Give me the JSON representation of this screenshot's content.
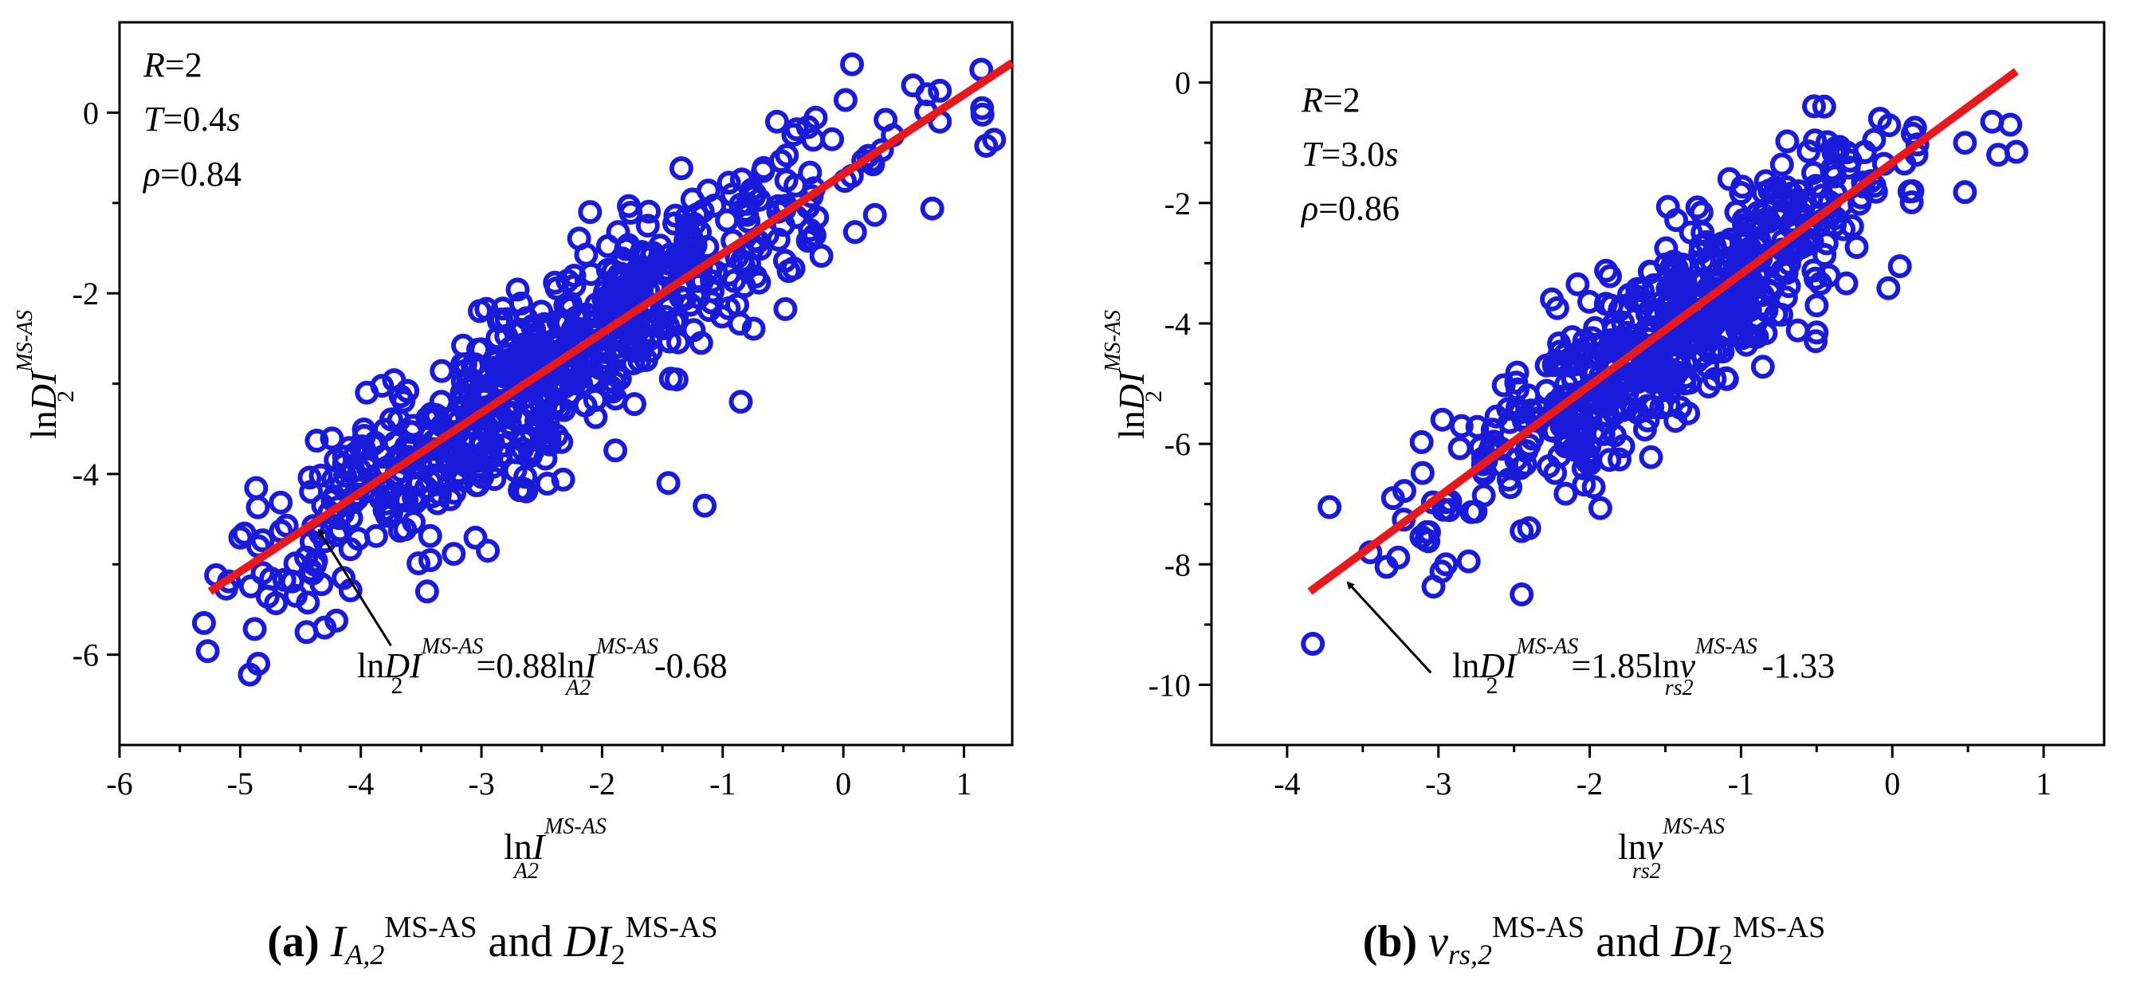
{
  "chart_data": [
    {
      "type": "scatter",
      "panel_label": "(a)",
      "caption": {
        "v1": "I",
        "v1_sub": "A,2",
        "sup": "MS-AS",
        "mid": " and ",
        "v2": "DI",
        "v2_sub": "2",
        "sup2": "MS-AS"
      },
      "xlabel": {
        "pre": "ln",
        "var": "I",
        "sub": "A2",
        "sup": "MS-AS"
      },
      "ylabel": {
        "pre": "ln",
        "var": "DI",
        "sub": "2",
        "sup": "MS-AS"
      },
      "xlim": [
        -6,
        1.4
      ],
      "ylim": [
        -7,
        1.0
      ],
      "xticks": [
        -6,
        -5,
        -4,
        -3,
        -2,
        -1,
        0,
        1
      ],
      "yticks": [
        -6,
        -4,
        -2,
        0
      ],
      "stats": [
        "R=2",
        "T=0.4s",
        "ρ=0.84"
      ],
      "stat_parts": [
        {
          "var": "R",
          "rest": "=2"
        },
        {
          "var": "T",
          "rest": "=0.4",
          "unit": "s"
        },
        {
          "var": "ρ",
          "rest": "=0.84"
        }
      ],
      "equation": {
        "lhs_pre": "ln",
        "lhs_var": "DI",
        "lhs_sub": "2",
        "sup": "MS-AS",
        "mid": "=0.88ln",
        "rhs_var": "I",
        "rhs_sub": "A2",
        "rhs_sup": "MS-AS",
        "tail": "-0.68"
      },
      "fit": {
        "slope": 0.88,
        "intercept": -0.68,
        "x_range": [
          -5.25,
          1.4
        ],
        "color": "#e8191c"
      },
      "marker_color": "#1a1adb",
      "annotation_arrow": {
        "from": [
          -3.75,
          -5.9
        ],
        "to": [
          -4.35,
          -4.62
        ]
      },
      "cloud": {
        "seed": 7,
        "n": 700,
        "x_center": -2.4,
        "x_sd": 1.15,
        "x_min": -5.3,
        "x_max": 1.3,
        "slope": 0.88,
        "intercept": -0.68,
        "resid_sd": 0.48,
        "extra": [
          [
            -5.3,
            -5.65
          ],
          [
            -4.92,
            -6.22
          ],
          [
            -4.85,
            -6.1
          ],
          [
            -4.45,
            -5.75
          ],
          [
            -4.3,
            -5.7
          ],
          [
            -5.2,
            -5.12
          ],
          [
            -4.85,
            -4.8
          ],
          [
            -4.4,
            -5.1
          ],
          [
            -3.95,
            -3.1
          ],
          [
            -1.15,
            -4.35
          ],
          [
            -1.45,
            -4.1
          ],
          [
            -3.45,
            -5.3
          ],
          [
            -0.25,
            -0.3
          ],
          [
            0.35,
            -0.08
          ],
          [
            1.15,
            0.05
          ],
          [
            1.25,
            -0.3
          ],
          [
            0.8,
            -0.1
          ],
          [
            -0.55,
            -0.1
          ],
          [
            -2.1,
            -1.1
          ],
          [
            -0.85,
            -3.2
          ]
        ]
      }
    },
    {
      "type": "scatter",
      "panel_label": "(b)",
      "caption": {
        "v1": "v",
        "v1_sub": "rs,2",
        "sup": "MS-AS",
        "mid": " and ",
        "v2": "DI",
        "v2_sub": "2",
        "sup2": "MS-AS"
      },
      "xlabel": {
        "pre": "ln",
        "var": "v",
        "sub": "rs2",
        "sup": "MS-AS"
      },
      "ylabel": {
        "pre": "ln",
        "var": "DI",
        "sub": "2",
        "sup": "MS-AS"
      },
      "xlim": [
        -4.5,
        1.4
      ],
      "ylim": [
        -11,
        1.0
      ],
      "xticks": [
        -4,
        -3,
        -2,
        -1,
        0,
        1
      ],
      "yticks": [
        -10,
        -8,
        -6,
        -4,
        -2,
        0
      ],
      "stats": [
        "R=2",
        "T=3.0s",
        "ρ=0.86"
      ],
      "stat_parts": [
        {
          "var": "R",
          "rest": "=2"
        },
        {
          "var": "T",
          "rest": "=3.0",
          "unit": "s"
        },
        {
          "var": "ρ",
          "rest": "=0.86"
        }
      ],
      "equation": {
        "lhs_pre": "ln",
        "lhs_var": "DI",
        "lhs_sub": "2",
        "sup": "MS-AS",
        "mid": "=1.85ln",
        "rhs_var": "v",
        "rhs_sub": "rs2",
        "rhs_sup": "MS-AS",
        "tail": "-1.33"
      },
      "fit": {
        "slope": 1.85,
        "intercept": -1.33,
        "x_range": [
          -3.85,
          0.82
        ],
        "color": "#e8191c"
      },
      "marker_color": "#1a1adb",
      "annotation_arrow": {
        "from": [
          -3.05,
          -9.8
        ],
        "to": [
          -3.6,
          -8.3
        ]
      },
      "cloud": {
        "seed": 11,
        "n": 600,
        "x_center": -1.45,
        "x_sd": 0.72,
        "x_min": -3.4,
        "x_max": 0.2,
        "slope": 1.85,
        "intercept": -1.33,
        "resid_sd": 0.72,
        "extra": [
          [
            -3.83,
            -9.32
          ],
          [
            -3.72,
            -7.05
          ],
          [
            -3.45,
            -7.8
          ],
          [
            -3.3,
            -6.9
          ],
          [
            -2.95,
            -8.0
          ],
          [
            -2.8,
            -7.95
          ],
          [
            -2.45,
            -8.5
          ],
          [
            -2.4,
            -7.4
          ],
          [
            0.05,
            -3.05
          ],
          [
            0.48,
            -1.0
          ],
          [
            0.48,
            -1.82
          ],
          [
            0.66,
            -0.65
          ],
          [
            0.78,
            -0.7
          ],
          [
            0.82,
            -1.15
          ],
          [
            0.7,
            -1.2
          ],
          [
            0.15,
            -0.75
          ],
          [
            0.16,
            -1.2
          ],
          [
            -0.45,
            -0.4
          ],
          [
            -0.5,
            -3.7
          ],
          [
            -0.5,
            -4.15
          ],
          [
            -2.08,
            -3.35
          ],
          [
            -2.25,
            -3.6
          ]
        ]
      }
    }
  ]
}
